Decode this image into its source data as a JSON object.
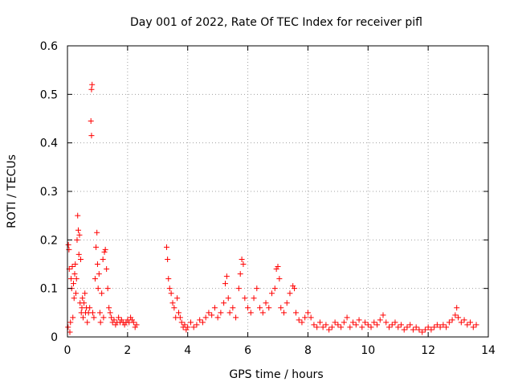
{
  "colors": {
    "series": "#ff0000",
    "axis": "#000000",
    "grid": "#a0a0a0"
  },
  "chart_data": {
    "type": "scatter",
    "title": "Day 001 of 2022, Rate Of TEC Index for receiver pifl",
    "xlabel": "GPS time / hours",
    "ylabel": "ROTI / TECUs",
    "xlim": [
      0,
      14
    ],
    "ylim": [
      0,
      0.6
    ],
    "grid": true,
    "xticks": [
      0,
      2,
      4,
      6,
      8,
      10,
      12,
      14
    ],
    "xtick_labels": [
      "0",
      "2",
      "4",
      "6",
      "8",
      "10",
      "12",
      "14"
    ],
    "yticks": [
      0,
      0.1,
      0.2,
      0.3,
      0.4,
      0.5,
      0.6
    ],
    "ytick_labels": [
      "0",
      "0.1",
      "0.2",
      "0.3",
      "0.4",
      "0.5",
      "0.6"
    ],
    "marker": "plus",
    "series": [
      {
        "name": "ROTI",
        "points": [
          [
            0.02,
            0.02
          ],
          [
            0.03,
            0.19
          ],
          [
            0.05,
            0.18
          ],
          [
            0.06,
            0.14
          ],
          [
            0.08,
            0.01
          ],
          [
            0.1,
            0.03
          ],
          [
            0.12,
            0.12
          ],
          [
            0.14,
            0.1
          ],
          [
            0.16,
            0.145
          ],
          [
            0.18,
            0.04
          ],
          [
            0.2,
            0.11
          ],
          [
            0.22,
            0.08
          ],
          [
            0.24,
            0.13
          ],
          [
            0.26,
            0.15
          ],
          [
            0.28,
            0.09
          ],
          [
            0.3,
            0.12
          ],
          [
            0.32,
            0.2
          ],
          [
            0.34,
            0.25
          ],
          [
            0.36,
            0.22
          ],
          [
            0.38,
            0.17
          ],
          [
            0.4,
            0.21
          ],
          [
            0.42,
            0.07
          ],
          [
            0.44,
            0.16
          ],
          [
            0.46,
            0.05
          ],
          [
            0.48,
            0.06
          ],
          [
            0.5,
            0.08
          ],
          [
            0.52,
            0.04
          ],
          [
            0.55,
            0.07
          ],
          [
            0.58,
            0.09
          ],
          [
            0.6,
            0.05
          ],
          [
            0.63,
            0.06
          ],
          [
            0.66,
            0.03
          ],
          [
            0.7,
            0.05
          ],
          [
            0.74,
            0.06
          ],
          [
            0.78,
            0.445
          ],
          [
            0.8,
            0.415
          ],
          [
            0.8,
            0.51
          ],
          [
            0.82,
            0.52
          ],
          [
            0.84,
            0.05
          ],
          [
            0.88,
            0.04
          ],
          [
            0.92,
            0.12
          ],
          [
            0.95,
            0.185
          ],
          [
            0.98,
            0.215
          ],
          [
            1.0,
            0.15
          ],
          [
            1.02,
            0.1
          ],
          [
            1.05,
            0.13
          ],
          [
            1.08,
            0.05
          ],
          [
            1.1,
            0.03
          ],
          [
            1.14,
            0.09
          ],
          [
            1.18,
            0.16
          ],
          [
            1.2,
            0.04
          ],
          [
            1.23,
            0.175
          ],
          [
            1.26,
            0.18
          ],
          [
            1.3,
            0.14
          ],
          [
            1.34,
            0.1
          ],
          [
            1.38,
            0.06
          ],
          [
            1.42,
            0.05
          ],
          [
            1.46,
            0.04
          ],
          [
            1.5,
            0.03
          ],
          [
            1.55,
            0.035
          ],
          [
            1.6,
            0.025
          ],
          [
            1.65,
            0.03
          ],
          [
            1.7,
            0.04
          ],
          [
            1.75,
            0.03
          ],
          [
            1.8,
            0.035
          ],
          [
            1.85,
            0.03
          ],
          [
            1.9,
            0.025
          ],
          [
            1.95,
            0.03
          ],
          [
            2.0,
            0.035
          ],
          [
            2.05,
            0.03
          ],
          [
            2.1,
            0.04
          ],
          [
            2.15,
            0.035
          ],
          [
            2.2,
            0.03
          ],
          [
            2.25,
            0.02
          ],
          [
            2.3,
            0.025
          ],
          [
            3.3,
            0.185
          ],
          [
            3.33,
            0.16
          ],
          [
            3.36,
            0.12
          ],
          [
            3.4,
            0.1
          ],
          [
            3.45,
            0.09
          ],
          [
            3.5,
            0.07
          ],
          [
            3.55,
            0.06
          ],
          [
            3.6,
            0.04
          ],
          [
            3.65,
            0.08
          ],
          [
            3.7,
            0.05
          ],
          [
            3.75,
            0.04
          ],
          [
            3.8,
            0.03
          ],
          [
            3.85,
            0.02
          ],
          [
            3.9,
            0.025
          ],
          [
            3.95,
            0.015
          ],
          [
            4.0,
            0.02
          ],
          [
            4.1,
            0.03
          ],
          [
            4.2,
            0.02
          ],
          [
            4.3,
            0.025
          ],
          [
            4.4,
            0.035
          ],
          [
            4.5,
            0.03
          ],
          [
            4.6,
            0.04
          ],
          [
            4.7,
            0.05
          ],
          [
            4.8,
            0.045
          ],
          [
            4.9,
            0.06
          ],
          [
            5.0,
            0.04
          ],
          [
            5.1,
            0.05
          ],
          [
            5.2,
            0.07
          ],
          [
            5.25,
            0.11
          ],
          [
            5.3,
            0.125
          ],
          [
            5.35,
            0.08
          ],
          [
            5.4,
            0.05
          ],
          [
            5.5,
            0.06
          ],
          [
            5.6,
            0.04
          ],
          [
            5.7,
            0.1
          ],
          [
            5.75,
            0.13
          ],
          [
            5.8,
            0.16
          ],
          [
            5.85,
            0.15
          ],
          [
            5.9,
            0.08
          ],
          [
            6.0,
            0.06
          ],
          [
            6.1,
            0.05
          ],
          [
            6.2,
            0.08
          ],
          [
            6.3,
            0.1
          ],
          [
            6.4,
            0.06
          ],
          [
            6.5,
            0.05
          ],
          [
            6.6,
            0.07
          ],
          [
            6.7,
            0.06
          ],
          [
            6.8,
            0.09
          ],
          [
            6.9,
            0.1
          ],
          [
            6.95,
            0.14
          ],
          [
            7.0,
            0.145
          ],
          [
            7.05,
            0.12
          ],
          [
            7.1,
            0.06
          ],
          [
            7.2,
            0.05
          ],
          [
            7.3,
            0.07
          ],
          [
            7.4,
            0.09
          ],
          [
            7.5,
            0.105
          ],
          [
            7.55,
            0.1
          ],
          [
            7.6,
            0.05
          ],
          [
            7.7,
            0.035
          ],
          [
            7.8,
            0.03
          ],
          [
            7.9,
            0.04
          ],
          [
            8.0,
            0.05
          ],
          [
            8.1,
            0.04
          ],
          [
            8.2,
            0.025
          ],
          [
            8.3,
            0.02
          ],
          [
            8.4,
            0.03
          ],
          [
            8.5,
            0.02
          ],
          [
            8.6,
            0.025
          ],
          [
            8.7,
            0.015
          ],
          [
            8.8,
            0.02
          ],
          [
            8.9,
            0.03
          ],
          [
            9.0,
            0.025
          ],
          [
            9.1,
            0.02
          ],
          [
            9.2,
            0.03
          ],
          [
            9.3,
            0.04
          ],
          [
            9.4,
            0.02
          ],
          [
            9.5,
            0.03
          ],
          [
            9.6,
            0.025
          ],
          [
            9.7,
            0.035
          ],
          [
            9.8,
            0.02
          ],
          [
            9.9,
            0.03
          ],
          [
            10.0,
            0.025
          ],
          [
            10.1,
            0.02
          ],
          [
            10.2,
            0.03
          ],
          [
            10.3,
            0.025
          ],
          [
            10.4,
            0.035
          ],
          [
            10.5,
            0.045
          ],
          [
            10.6,
            0.03
          ],
          [
            10.7,
            0.02
          ],
          [
            10.8,
            0.025
          ],
          [
            10.9,
            0.03
          ],
          [
            11.0,
            0.02
          ],
          [
            11.1,
            0.025
          ],
          [
            11.2,
            0.015
          ],
          [
            11.3,
            0.02
          ],
          [
            11.4,
            0.025
          ],
          [
            11.5,
            0.015
          ],
          [
            11.6,
            0.02
          ],
          [
            11.7,
            0.015
          ],
          [
            11.8,
            0.01
          ],
          [
            11.9,
            0.015
          ],
          [
            12.0,
            0.02
          ],
          [
            12.1,
            0.015
          ],
          [
            12.2,
            0.02
          ],
          [
            12.3,
            0.025
          ],
          [
            12.4,
            0.02
          ],
          [
            12.5,
            0.025
          ],
          [
            12.6,
            0.02
          ],
          [
            12.7,
            0.03
          ],
          [
            12.8,
            0.035
          ],
          [
            12.9,
            0.045
          ],
          [
            12.95,
            0.06
          ],
          [
            13.0,
            0.04
          ],
          [
            13.1,
            0.03
          ],
          [
            13.2,
            0.035
          ],
          [
            13.3,
            0.025
          ],
          [
            13.4,
            0.03
          ],
          [
            13.5,
            0.02
          ],
          [
            13.6,
            0.025
          ]
        ]
      }
    ]
  }
}
